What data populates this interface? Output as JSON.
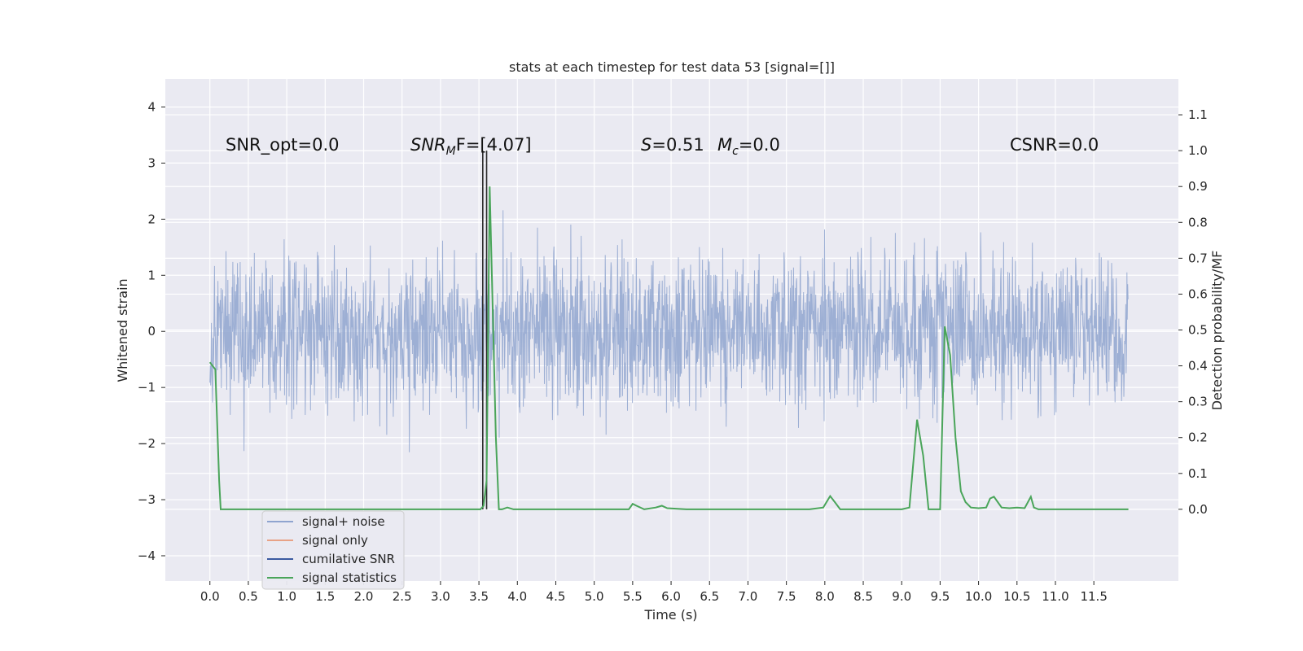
{
  "chart_data": {
    "type": "line",
    "title": "stats at each timestep for test data 53 [signal=[]]",
    "xlabel": "Time (s)",
    "ylabel_left": "Whitened strain",
    "ylabel_right": "Detection probability/MF",
    "xlim": [
      -0.58,
      12.6
    ],
    "ylim_left": [
      -4.45,
      4.5
    ],
    "ylim_right": [
      -0.2,
      1.2
    ],
    "x_ticks": [
      "0.0",
      "0.5",
      "1.0",
      "1.5",
      "2.0",
      "2.5",
      "3.0",
      "3.5",
      "4.0",
      "4.5",
      "5.0",
      "5.5",
      "6.0",
      "6.5",
      "7.0",
      "7.5",
      "8.0",
      "8.5",
      "9.0",
      "9.5",
      "10.0",
      "10.5",
      "11.0",
      "11.5"
    ],
    "y_ticks_left": [
      "−4",
      "−3",
      "−2",
      "−1",
      "0",
      "1",
      "2",
      "3",
      "4"
    ],
    "y_ticks_right": [
      "0.0",
      "0.1",
      "0.2",
      "0.3",
      "0.4",
      "0.5",
      "0.6",
      "0.7",
      "0.8",
      "0.9",
      "1.0",
      "1.1"
    ],
    "grid": true,
    "legend_position": "lower-left",
    "annotations": {
      "snr_opt": "SNR_opt=0.0",
      "snr_mf_main": "SNR",
      "snr_mf_sub": "M",
      "snr_mf_rest": "F=[4.07]",
      "s_italic": "S",
      "s_rest": "=0.51",
      "mc_italic": "M",
      "mc_sub": "c",
      "mc_rest": "=0.0",
      "csnr": "CSNR=0.0"
    },
    "series": [
      {
        "name": "signal+ noise",
        "color": "#8fa4cf",
        "description_values": "noise time series, roughly within [-3.5, 4.1], amplitude envelope from 0 to 11.95 s"
      },
      {
        "name": "signal only",
        "color": "#e8a286"
      },
      {
        "name": "cumilative SNR",
        "color": "#3b5aa0"
      },
      {
        "name": "signal statistics",
        "color": "#4aa55a",
        "x": [
          0.0,
          0.07,
          0.12,
          0.14,
          0.2,
          0.5,
          1.0,
          1.5,
          2.0,
          2.5,
          3.0,
          3.4,
          3.52,
          3.56,
          3.6,
          3.64,
          3.68,
          3.72,
          3.76,
          3.8,
          3.87,
          3.95,
          4.2,
          5.0,
          5.45,
          5.5,
          5.55,
          5.65,
          5.8,
          5.88,
          5.95,
          6.2,
          7.0,
          7.5,
          7.8,
          7.98,
          8.07,
          8.13,
          8.2,
          8.5,
          9.0,
          9.1,
          9.2,
          9.28,
          9.35,
          9.42,
          9.5,
          9.56,
          9.63,
          9.7,
          9.77,
          9.83,
          9.9,
          10.0,
          10.1,
          10.15,
          10.2,
          10.25,
          10.3,
          10.4,
          10.5,
          10.6,
          10.68,
          10.72,
          10.78,
          10.9,
          11.5,
          11.95
        ],
        "y": [
          0.41,
          0.39,
          0.08,
          0.0,
          0.0,
          0.0,
          0.0,
          0.0,
          0.0,
          0.0,
          0.0,
          0.0,
          0.0,
          0.01,
          0.08,
          0.9,
          0.55,
          0.2,
          0.0,
          0.0,
          0.005,
          0.0,
          0.0,
          0.0,
          0.0,
          0.015,
          0.01,
          0.0,
          0.005,
          0.01,
          0.003,
          0.0,
          0.0,
          0.0,
          0.0,
          0.005,
          0.037,
          0.02,
          0.0,
          0.0,
          0.0,
          0.005,
          0.25,
          0.15,
          0.0,
          0.0,
          0.0,
          0.51,
          0.43,
          0.2,
          0.05,
          0.02,
          0.005,
          0.003,
          0.005,
          0.03,
          0.035,
          0.02,
          0.005,
          0.003,
          0.005,
          0.003,
          0.035,
          0.005,
          0.0,
          0.0,
          0.0,
          0.0
        ]
      }
    ],
    "vertical_lines": [
      3.55,
      3.6
    ]
  }
}
